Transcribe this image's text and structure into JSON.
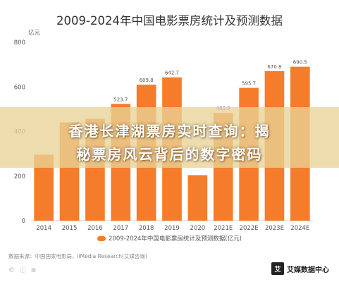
{
  "title": "2009-2024年中国电影票房统计及预测数据",
  "unit_label": "亿元",
  "legend_label": "2009-2024年中国电影票房统计及预测数据(亿元)",
  "source": "数据来源：中国国家电影局，iiMedia Research(艾媒咨询)",
  "cc_icons": "© ⓘ ⊜",
  "brand": {
    "mark": "艾",
    "name": "艾媒数据中心"
  },
  "banner": {
    "line1": "香港长津湖票房实时查询：揭",
    "line2": "秘票房风云背后的数字密码"
  },
  "colors": {
    "bar": "#f47c2a",
    "banner": "#e8d296",
    "axis": "#cccccc",
    "text": "#555555"
  },
  "chart_data": {
    "type": "bar",
    "title": "2009-2024年中国电影票房统计及预测数据",
    "ylabel": "亿元",
    "ylim": [
      0,
      800
    ],
    "yticks": [
      0,
      200,
      400,
      600,
      800
    ],
    "categories": [
      "2014",
      "2015",
      "2016",
      "2017",
      "2018",
      "2019",
      "2020",
      "2021E",
      "2022E",
      "2023E",
      "2024E"
    ],
    "values": [
      296,
      440.7,
      457.1,
      523.7,
      609.8,
      642.7,
      204.2,
      483.5,
      595.7,
      670.8,
      690.5
    ],
    "data_labels": [
      "",
      "",
      "",
      "523.7",
      "609.8",
      "642.7",
      "",
      "483.5",
      "595.7",
      "670.8",
      "690.5"
    ],
    "series": [
      {
        "name": "2009-2024年中国电影票房统计及预测数据(亿元)",
        "values": [
          296,
          440.7,
          457.1,
          523.7,
          609.8,
          642.7,
          204.2,
          483.5,
          595.7,
          670.8,
          690.5
        ]
      }
    ],
    "grid": false,
    "legend": "bottom"
  }
}
